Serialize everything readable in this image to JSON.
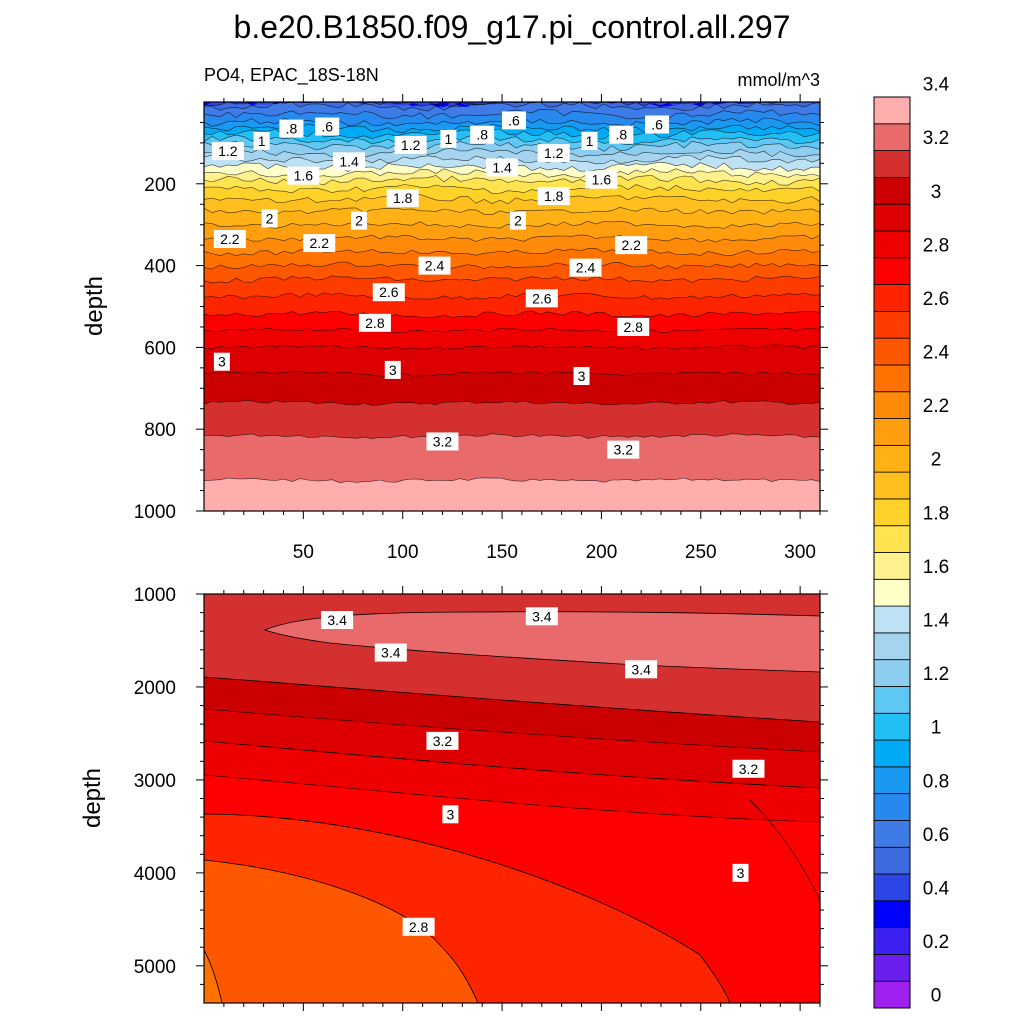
{
  "title": "b.e20.B1850.f09_g17.pi_control.all.297",
  "subtitle_left": "PO4, EPAC_18S-18N",
  "units": "mmol/m^3",
  "chart_data": [
    {
      "type": "contour",
      "panel": "upper",
      "ylabel": "depth",
      "ylim": [
        1000,
        0
      ],
      "xlim": [
        0,
        310
      ],
      "xticks": [
        "50",
        "100",
        "150",
        "200",
        "250",
        "300"
      ],
      "yticks": [
        "200",
        "400",
        "600",
        "800",
        "1000"
      ],
      "contour_profile": {
        "depth": [
          0,
          50,
          100,
          150,
          200,
          250,
          300,
          350,
          400,
          450,
          500,
          550,
          600,
          650,
          700,
          750,
          800,
          850,
          900,
          950,
          1000
        ],
        "value": [
          0.55,
          0.8,
          1.15,
          1.45,
          1.75,
          1.95,
          2.1,
          2.25,
          2.4,
          2.55,
          2.65,
          2.78,
          2.9,
          2.98,
          3.05,
          3.12,
          3.18,
          3.24,
          3.28,
          3.32,
          3.35
        ]
      },
      "contour_labels": [
        {
          "text": "1.2",
          "x": 12,
          "depth": 120
        },
        {
          "text": "1",
          "x": 29,
          "depth": 95
        },
        {
          "text": ".8",
          "x": 44,
          "depth": 65
        },
        {
          "text": ".6",
          "x": 62,
          "depth": 60
        },
        {
          "text": "1.2",
          "x": 104,
          "depth": 105
        },
        {
          "text": "1",
          "x": 123,
          "depth": 90
        },
        {
          "text": ".8",
          "x": 140,
          "depth": 80
        },
        {
          "text": ".6",
          "x": 156,
          "depth": 45
        },
        {
          "text": "1.4",
          "x": 73,
          "depth": 145
        },
        {
          "text": "1.6",
          "x": 50,
          "depth": 180
        },
        {
          "text": "1.4",
          "x": 150,
          "depth": 160
        },
        {
          "text": "1.2",
          "x": 176,
          "depth": 125
        },
        {
          "text": "1",
          "x": 194,
          "depth": 95
        },
        {
          "text": ".8",
          "x": 210,
          "depth": 80
        },
        {
          "text": ".6",
          "x": 228,
          "depth": 55
        },
        {
          "text": "1.6",
          "x": 200,
          "depth": 190
        },
        {
          "text": "1.8",
          "x": 100,
          "depth": 235
        },
        {
          "text": "1.8",
          "x": 176,
          "depth": 230
        },
        {
          "text": "2",
          "x": 33,
          "depth": 285
        },
        {
          "text": "2",
          "x": 78,
          "depth": 290
        },
        {
          "text": "2",
          "x": 158,
          "depth": 290
        },
        {
          "text": "2.2",
          "x": 13,
          "depth": 335
        },
        {
          "text": "2.2",
          "x": 58,
          "depth": 345
        },
        {
          "text": "2.2",
          "x": 215,
          "depth": 350
        },
        {
          "text": "2.4",
          "x": 116,
          "depth": 400
        },
        {
          "text": "2.4",
          "x": 192,
          "depth": 405
        },
        {
          "text": "2.6",
          "x": 93,
          "depth": 465
        },
        {
          "text": "2.6",
          "x": 170,
          "depth": 480
        },
        {
          "text": "2.8",
          "x": 86,
          "depth": 540
        },
        {
          "text": "2.8",
          "x": 216,
          "depth": 550
        },
        {
          "text": "3",
          "x": 9,
          "depth": 635
        },
        {
          "text": "3",
          "x": 95,
          "depth": 655
        },
        {
          "text": "3",
          "x": 190,
          "depth": 670
        },
        {
          "text": "3.2",
          "x": 120,
          "depth": 830
        },
        {
          "text": "3.2",
          "x": 211,
          "depth": 850
        }
      ]
    },
    {
      "type": "contour",
      "panel": "lower",
      "ylabel": "depth",
      "ylim": [
        5400,
        1000
      ],
      "xlim": [
        0,
        310
      ],
      "xticks": [],
      "yticks": [
        "1000",
        "2000",
        "3000",
        "4000",
        "5000"
      ],
      "contour_labels": [
        {
          "text": "3.4",
          "x": 67,
          "depth": 1280
        },
        {
          "text": "3.4",
          "x": 170,
          "depth": 1240
        },
        {
          "text": "3.4",
          "x": 94,
          "depth": 1630
        },
        {
          "text": "3.4",
          "x": 220,
          "depth": 1810
        },
        {
          "text": "3.2",
          "x": 120,
          "depth": 2580
        },
        {
          "text": "3.2",
          "x": 274,
          "depth": 2880
        },
        {
          "text": "3",
          "x": 124,
          "depth": 3370
        },
        {
          "text": "3",
          "x": 270,
          "depth": 4000
        },
        {
          "text": "2.8",
          "x": 108,
          "depth": 4580
        }
      ]
    }
  ],
  "colorbar": {
    "colors": [
      "#a020f0",
      "#6a1ff0",
      "#3b20f0",
      "#0000ff",
      "#2c45e6",
      "#3e6ae0",
      "#3e7be6",
      "#2788ee",
      "#1a99f2",
      "#00aaf5",
      "#22bff5",
      "#5ec8f5",
      "#8ccdf0",
      "#a6d3ee",
      "#bde2f5",
      "#ffffc8",
      "#fff18e",
      "#ffe450",
      "#ffd22a",
      "#ffc01f",
      "#ffb115",
      "#ff9f10",
      "#ff8a0a",
      "#ff7200",
      "#ff5600",
      "#ff3c00",
      "#ff2400",
      "#ff0000",
      "#ee0000",
      "#dd0000",
      "#cb0000",
      "#d53030",
      "#e86a6a",
      "#ffadad"
    ],
    "tick_labels": [
      "0",
      "0.2",
      "0.4",
      "0.6",
      "0.8",
      "1",
      "1.2",
      "1.4",
      "1.6",
      "1.8",
      "2",
      "2.2",
      "2.4",
      "2.6",
      "2.8",
      "3",
      "3.2",
      "3.4"
    ]
  }
}
